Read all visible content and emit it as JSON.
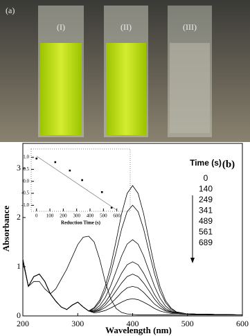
{
  "photo": {
    "panel": "(a)",
    "labels": [
      "(I)",
      "(II)",
      "(III)"
    ]
  },
  "chart_data": [
    {
      "type": "line",
      "panel": "(b)",
      "x_label": "Wavelength (nm)",
      "y_label": "Absorbance",
      "legend_title": "Time (s)",
      "xlim": [
        200,
        600
      ],
      "xticks": [
        200,
        300,
        400,
        500,
        600
      ],
      "ylim": [
        0,
        3.5
      ],
      "yticks": [
        0,
        1,
        2,
        3
      ],
      "x": [
        200,
        210,
        220,
        230,
        240,
        250,
        260,
        270,
        280,
        290,
        300,
        310,
        320,
        330,
        340,
        350,
        360,
        370,
        380,
        390,
        400,
        410,
        420,
        430,
        440,
        450,
        460,
        470,
        480,
        500,
        550,
        600
      ],
      "series": [
        {
          "name": "0",
          "color": "#000",
          "values": [
            1.15,
            0.6,
            0.8,
            0.85,
            0.7,
            0.45,
            0.3,
            0.18,
            0.13,
            0.22,
            0.28,
            0.18,
            0.1,
            0.17,
            0.32,
            0.6,
            1.01,
            1.53,
            2.08,
            2.49,
            2.65,
            2.49,
            2.08,
            1.53,
            1.0,
            0.59,
            0.31,
            0.16,
            0.08,
            0.04,
            0.03,
            0.02
          ]
        },
        {
          "name": "140",
          "color": "#000",
          "values": [
            1.15,
            0.6,
            0.8,
            0.85,
            0.7,
            0.45,
            0.3,
            0.18,
            0.13,
            0.22,
            0.28,
            0.18,
            0.1,
            0.15,
            0.28,
            0.51,
            0.86,
            1.3,
            1.77,
            2.12,
            2.25,
            2.12,
            1.77,
            1.3,
            0.85,
            0.5,
            0.27,
            0.14,
            0.08,
            0.04,
            0.03,
            0.02
          ]
        },
        {
          "name": "249",
          "color": "#000",
          "values": [
            1.15,
            0.6,
            0.8,
            0.85,
            0.7,
            0.45,
            0.3,
            0.18,
            0.13,
            0.22,
            0.28,
            0.18,
            0.1,
            0.12,
            0.21,
            0.37,
            0.61,
            0.91,
            1.22,
            1.46,
            1.55,
            1.46,
            1.22,
            0.91,
            0.6,
            0.36,
            0.2,
            0.11,
            0.07,
            0.04,
            0.03,
            0.02
          ]
        },
        {
          "name": "341",
          "color": "#000",
          "values": [
            1.15,
            0.6,
            0.8,
            0.85,
            0.7,
            0.45,
            0.3,
            0.18,
            0.13,
            0.22,
            0.28,
            0.18,
            0.1,
            0.1,
            0.16,
            0.27,
            0.44,
            0.65,
            0.87,
            1.04,
            1.1,
            1.04,
            0.87,
            0.65,
            0.43,
            0.26,
            0.15,
            0.09,
            0.06,
            0.04,
            0.03,
            0.02
          ]
        },
        {
          "name": "489",
          "color": "#000",
          "values": [
            1.15,
            0.6,
            0.8,
            0.85,
            0.7,
            0.45,
            0.3,
            0.18,
            0.13,
            0.22,
            0.28,
            0.18,
            0.1,
            0.09,
            0.13,
            0.22,
            0.35,
            0.51,
            0.67,
            0.8,
            0.85,
            0.8,
            0.67,
            0.51,
            0.34,
            0.21,
            0.12,
            0.08,
            0.05,
            0.04,
            0.03,
            0.02
          ]
        },
        {
          "name": "561",
          "color": "#000",
          "values": [
            1.15,
            0.6,
            0.8,
            0.85,
            0.7,
            0.45,
            0.3,
            0.18,
            0.13,
            0.22,
            0.28,
            0.18,
            0.1,
            0.08,
            0.11,
            0.17,
            0.25,
            0.36,
            0.48,
            0.57,
            0.6,
            0.57,
            0.48,
            0.36,
            0.24,
            0.16,
            0.1,
            0.07,
            0.05,
            0.04,
            0.03,
            0.02
          ]
        },
        {
          "name": "689",
          "color": "#000",
          "values": [
            1.15,
            0.6,
            0.8,
            0.85,
            0.7,
            0.45,
            0.3,
            0.18,
            0.13,
            0.22,
            0.28,
            0.18,
            0.1,
            0.06,
            0.08,
            0.11,
            0.16,
            0.22,
            0.28,
            0.33,
            0.35,
            0.33,
            0.28,
            0.22,
            0.15,
            0.1,
            0.07,
            0.05,
            0.05,
            0.04,
            0.03,
            0.02
          ]
        },
        {
          "color": "#000",
          "values": [
            1.1,
            0.6,
            0.7,
            0.7,
            0.55,
            0.45,
            0.55,
            0.75,
            0.95,
            1.2,
            1.45,
            1.6,
            1.62,
            1.5,
            1.15,
            0.7,
            0.35,
            0.15,
            0.07,
            0.04,
            0.03,
            0.02,
            0.02,
            0.02,
            0.02,
            0.02,
            0.02,
            0.02,
            0.02,
            0.02,
            0.02,
            0.02
          ]
        }
      ]
    },
    {
      "type": "scatter",
      "x_label": "Reduction Time (s)",
      "xlim": [
        -40,
        700
      ],
      "xticks": [
        0,
        100,
        200,
        300,
        400,
        500,
        600
      ],
      "ylim": [
        -1.25,
        1.35
      ],
      "yticks": [
        {
          "value": 1,
          "label": "1.0"
        },
        {
          "value": 0.5,
          "label": "0.5"
        },
        {
          "value": 0,
          "label": "0.0"
        },
        {
          "value": -0.5,
          "label": "-0.5"
        },
        {
          "value": -1,
          "label": "-1.0"
        }
      ],
      "x": [
        0,
        140,
        249,
        341,
        489,
        561
      ],
      "values": [
        0.95,
        0.8,
        0.45,
        0.05,
        -0.45,
        -1.1
      ],
      "fit": {
        "x": [
          0,
          600
        ],
        "y": [
          1.05,
          -1.2
        ]
      }
    }
  ]
}
